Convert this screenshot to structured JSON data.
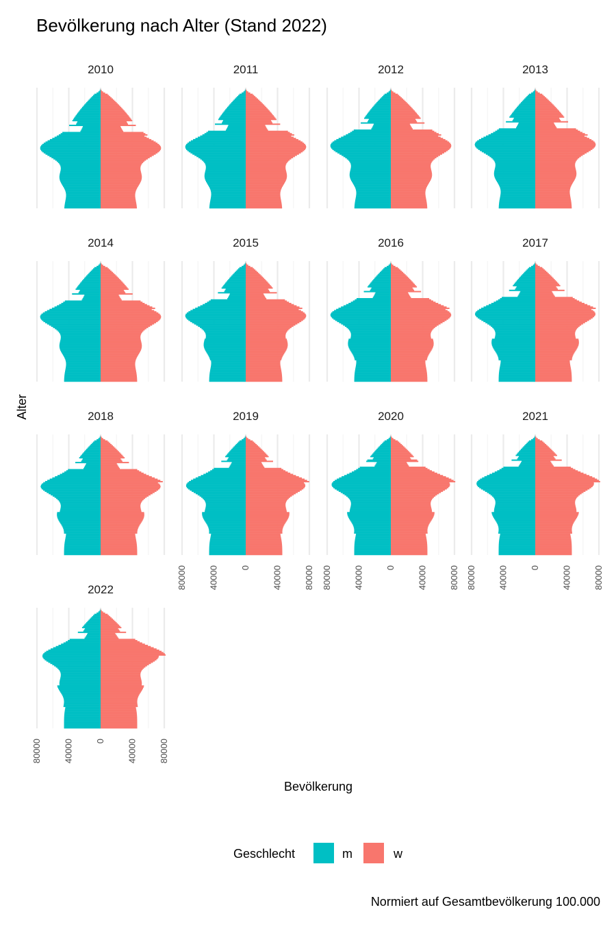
{
  "chart_data": {
    "type": "bar",
    "subtype": "population-pyramid-small-multiples",
    "title": "Bevölkerung nach Alter (Stand 2022)",
    "xlabel": "Bevölkerung",
    "ylabel": "Alter",
    "caption": "Normiert auf Gesamtbevölkerung 100.000",
    "panels": [
      "2010",
      "2011",
      "2012",
      "2013",
      "2014",
      "2015",
      "2016",
      "2017",
      "2018",
      "2019",
      "2020",
      "2021",
      "2022"
    ],
    "x_ticks": {
      "values": [
        -80000,
        -40000,
        0,
        40000,
        80000
      ],
      "labels": [
        "80000",
        "40000",
        "0",
        "40000",
        "80000"
      ]
    },
    "xlim": [
      -80000,
      80000
    ],
    "age_range": [
      0,
      100
    ],
    "grid": "vertical-major",
    "legend": {
      "title": "Geschlecht",
      "position": "bottom",
      "entries": [
        {
          "key": "m",
          "label": "m",
          "color": "#00BFC4"
        },
        {
          "key": "w",
          "label": "w",
          "color": "#F8766D"
        }
      ]
    },
    "series": [
      {
        "name": "m",
        "color": "#00BFC4",
        "side": "left"
      },
      {
        "name": "w",
        "color": "#F8766D",
        "side": "right"
      }
    ]
  }
}
